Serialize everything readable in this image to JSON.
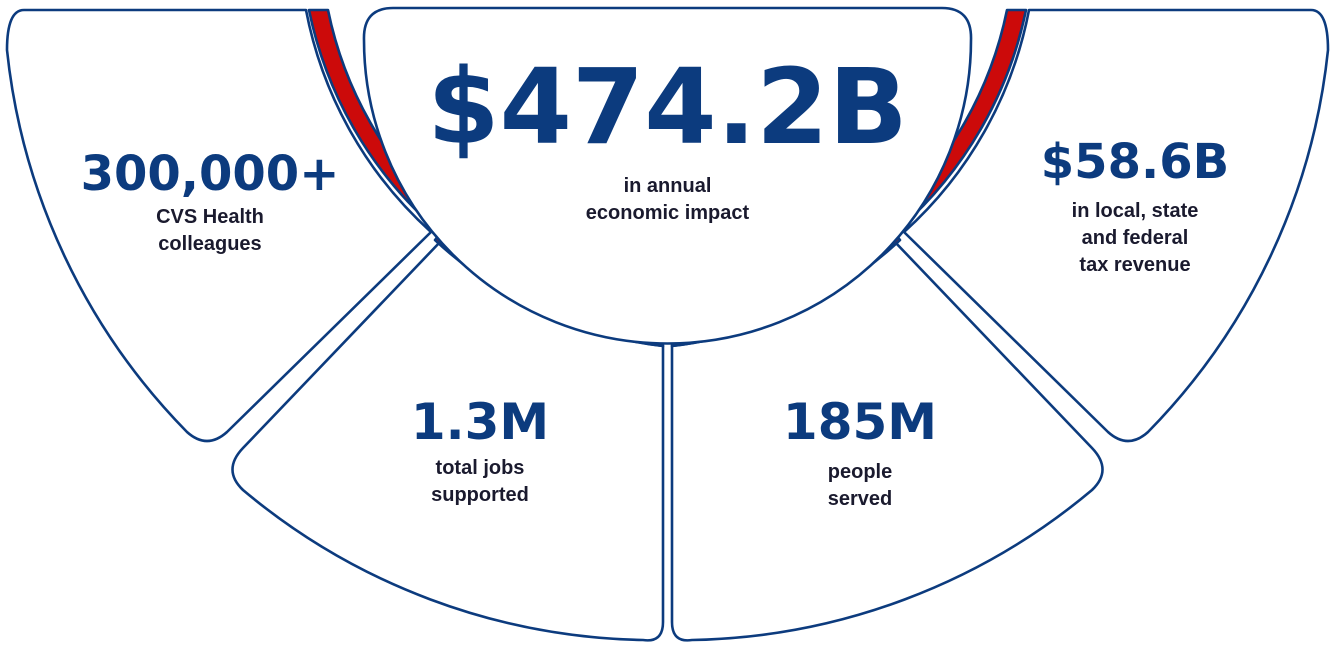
{
  "colors": {
    "navy": "#0c3b7e",
    "red": "#cc0a0a",
    "label": "#1a1a2e",
    "background": "#ffffff"
  },
  "stats": {
    "economic_impact": {
      "value": "$474.2B",
      "label_line1": "in annual",
      "label_line2": "economic impact"
    },
    "colleagues": {
      "value": "300,000+",
      "label_line1": "CVS Health",
      "label_line2": "colleagues"
    },
    "tax_revenue": {
      "value": "$58.6B",
      "label_line1": "in local, state",
      "label_line2": "and federal",
      "label_line3": "tax revenue"
    },
    "jobs": {
      "value": "1.3M",
      "label_line1": "total jobs",
      "label_line2": "supported"
    },
    "people": {
      "value": "185M",
      "label_line1": "people",
      "label_line2": "served"
    }
  }
}
